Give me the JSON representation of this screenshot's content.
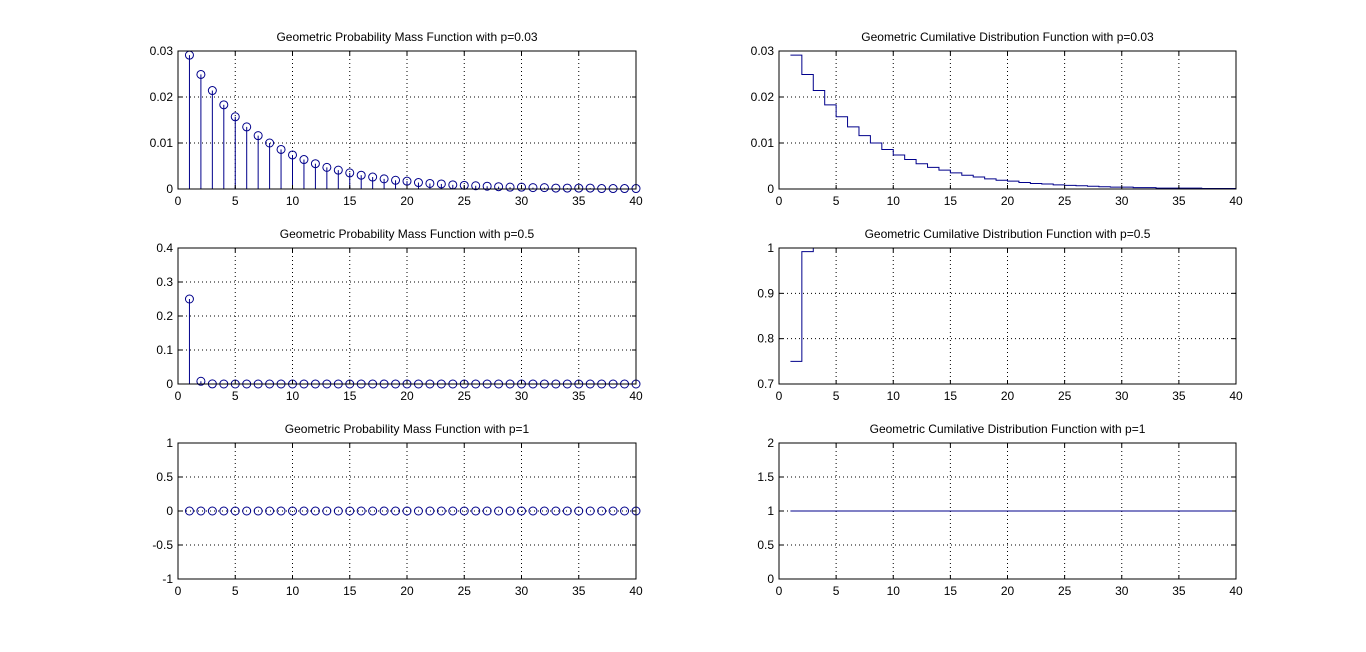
{
  "colors": {
    "series": "#00008b",
    "axis": "#000000",
    "grid": "#000000",
    "background": "#ffffff"
  },
  "chart_data": [
    {
      "type": "stem",
      "title": "Geometric Probability Mass Function with p=0.03",
      "xlim": [
        0,
        40
      ],
      "ylim": [
        0,
        0.03
      ],
      "xticks": [
        "0",
        "5",
        "10",
        "15",
        "20",
        "25",
        "30",
        "35",
        "40"
      ],
      "yticks": [
        "0",
        "0.01",
        "0.02",
        "0.03"
      ],
      "grid": true,
      "x": [
        1,
        2,
        3,
        4,
        5,
        6,
        7,
        8,
        9,
        10,
        11,
        12,
        13,
        14,
        15,
        16,
        17,
        18,
        19,
        20,
        21,
        22,
        23,
        24,
        25,
        26,
        27,
        28,
        29,
        30,
        31,
        32,
        33,
        34,
        35,
        36,
        37,
        38,
        39,
        40
      ],
      "values": [
        0.0291,
        0.0249,
        0.0214,
        0.0183,
        0.0157,
        0.0135,
        0.0116,
        0.01,
        0.0086,
        0.0074,
        0.0064,
        0.0055,
        0.0047,
        0.0041,
        0.0035,
        0.003,
        0.0026,
        0.0022,
        0.0019,
        0.0017,
        0.0014,
        0.0012,
        0.0011,
        0.0009,
        0.0008,
        0.0007,
        0.0006,
        0.0005,
        0.0004,
        0.0004,
        0.0003,
        0.0003,
        0.0002,
        0.0002,
        0.0002,
        0.0002,
        0.0001,
        0.0001,
        0.0001,
        0.0001
      ]
    },
    {
      "type": "stairs",
      "title": "Geometric Cumilative Distribution Function with p=0.03",
      "xlim": [
        0,
        40
      ],
      "ylim": [
        0,
        0.03
      ],
      "xticks": [
        "0",
        "5",
        "10",
        "15",
        "20",
        "25",
        "30",
        "35",
        "40"
      ],
      "yticks": [
        "0",
        "0.01",
        "0.02",
        "0.03"
      ],
      "grid": true,
      "x": [
        1,
        2,
        3,
        4,
        5,
        6,
        7,
        8,
        9,
        10,
        11,
        12,
        13,
        14,
        15,
        16,
        17,
        18,
        19,
        20,
        21,
        22,
        23,
        24,
        25,
        26,
        27,
        28,
        29,
        30,
        31,
        32,
        33,
        34,
        35,
        36,
        37,
        38,
        39,
        40
      ],
      "values": [
        0.0291,
        0.0249,
        0.0214,
        0.0183,
        0.0157,
        0.0135,
        0.0116,
        0.01,
        0.0086,
        0.0074,
        0.0064,
        0.0055,
        0.0047,
        0.0041,
        0.0035,
        0.003,
        0.0026,
        0.0022,
        0.0019,
        0.0017,
        0.0014,
        0.0012,
        0.0011,
        0.0009,
        0.0008,
        0.0007,
        0.0006,
        0.0005,
        0.0004,
        0.0004,
        0.0003,
        0.0003,
        0.0002,
        0.0002,
        0.0002,
        0.0002,
        0.0001,
        0.0001,
        0.0001,
        0.0001
      ]
    },
    {
      "type": "stem",
      "title": "Geometric Probability Mass Function with p=0.5",
      "xlim": [
        0,
        40
      ],
      "ylim": [
        0,
        0.4
      ],
      "xticks": [
        "0",
        "5",
        "10",
        "15",
        "20",
        "25",
        "30",
        "35",
        "40"
      ],
      "yticks": [
        "0",
        "0.1",
        "0.2",
        "0.3",
        "0.4"
      ],
      "grid": true,
      "x": [
        1,
        2,
        3,
        4,
        5,
        6,
        7,
        8,
        9,
        10,
        11,
        12,
        13,
        14,
        15,
        16,
        17,
        18,
        19,
        20,
        21,
        22,
        23,
        24,
        25,
        26,
        27,
        28,
        29,
        30,
        31,
        32,
        33,
        34,
        35,
        36,
        37,
        38,
        39,
        40
      ],
      "values": [
        0.25,
        0.008,
        0.0003,
        0,
        0,
        0,
        0,
        0,
        0,
        0,
        0,
        0,
        0,
        0,
        0,
        0,
        0,
        0,
        0,
        0,
        0,
        0,
        0,
        0,
        0,
        0,
        0,
        0,
        0,
        0,
        0,
        0,
        0,
        0,
        0,
        0,
        0,
        0,
        0,
        0
      ]
    },
    {
      "type": "stairs",
      "title": "Geometric Cumilative Distribution Function with p=0.5",
      "xlim": [
        0,
        40
      ],
      "ylim": [
        0.7,
        1
      ],
      "xticks": [
        "0",
        "5",
        "10",
        "15",
        "20",
        "25",
        "30",
        "35",
        "40"
      ],
      "yticks": [
        "0.7",
        "0.8",
        "0.9",
        "1"
      ],
      "grid": true,
      "x": [
        1,
        2,
        3
      ],
      "values": [
        0.75,
        0.992,
        1.0
      ]
    },
    {
      "type": "stem",
      "title": "Geometric Probability Mass Function with p=1",
      "xlim": [
        0,
        40
      ],
      "ylim": [
        -1,
        1
      ],
      "xticks": [
        "0",
        "5",
        "10",
        "15",
        "20",
        "25",
        "30",
        "35",
        "40"
      ],
      "yticks": [
        "-1",
        "-0.5",
        "0",
        "0.5",
        "1"
      ],
      "grid": true,
      "x": [
        1,
        2,
        3,
        4,
        5,
        6,
        7,
        8,
        9,
        10,
        11,
        12,
        13,
        14,
        15,
        16,
        17,
        18,
        19,
        20,
        21,
        22,
        23,
        24,
        25,
        26,
        27,
        28,
        29,
        30,
        31,
        32,
        33,
        34,
        35,
        36,
        37,
        38,
        39,
        40
      ],
      "values": [
        0,
        0,
        0,
        0,
        0,
        0,
        0,
        0,
        0,
        0,
        0,
        0,
        0,
        0,
        0,
        0,
        0,
        0,
        0,
        0,
        0,
        0,
        0,
        0,
        0,
        0,
        0,
        0,
        0,
        0,
        0,
        0,
        0,
        0,
        0,
        0,
        0,
        0,
        0,
        0
      ]
    },
    {
      "type": "stairs",
      "title": "Geometric Cumilative Distribution Function with p=1",
      "xlim": [
        0,
        40
      ],
      "ylim": [
        0,
        2
      ],
      "xticks": [
        "0",
        "5",
        "10",
        "15",
        "20",
        "25",
        "30",
        "35",
        "40"
      ],
      "yticks": [
        "0",
        "0.5",
        "1",
        "1.5",
        "2"
      ],
      "grid": true,
      "x": [
        1,
        40
      ],
      "values": [
        1,
        1
      ]
    }
  ]
}
